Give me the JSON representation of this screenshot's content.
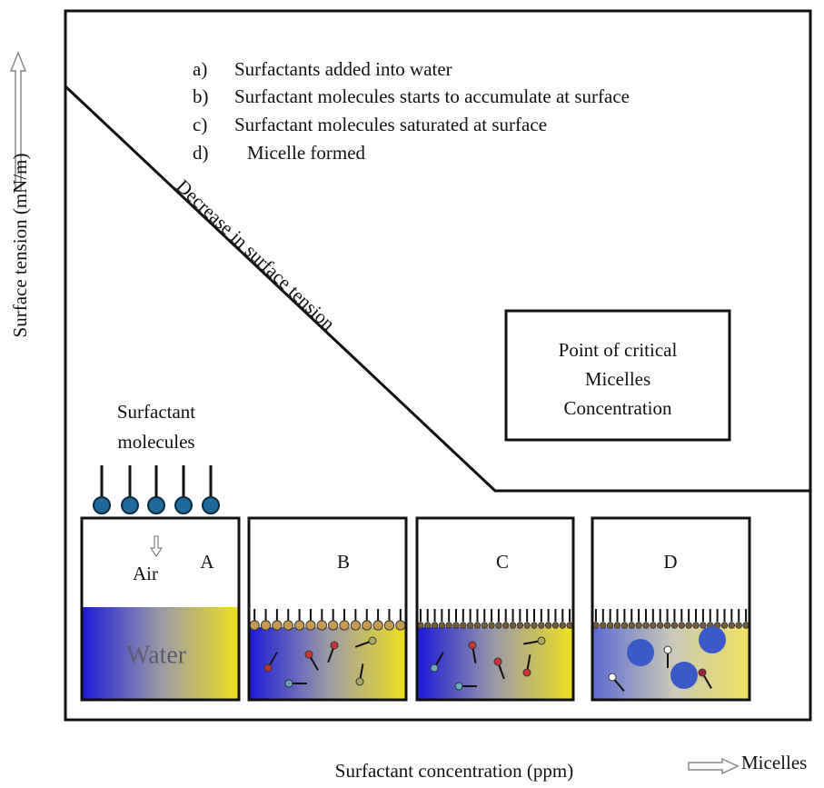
{
  "y_axis_label": "Surface tension (mN/m)",
  "x_axis_label": "Surfactant concentration (ppm)",
  "arrow_label": "Micelles",
  "legend": [
    {
      "marker": "a)",
      "text": "Surfactants added into water"
    },
    {
      "marker": "b)",
      "text": "Surfactant molecules starts to accumulate at surface"
    },
    {
      "marker": "c)",
      "text": "Surfactant molecules saturated at surface"
    },
    {
      "marker": "d)",
      "text": "Micelle formed"
    }
  ],
  "curve_label": "Decrease in surface tension",
  "cmc_box": [
    "Point of critical",
    "Micelles",
    "Concentration"
  ],
  "surfactant_label": [
    "Surfactant",
    "molecules"
  ],
  "panels": [
    "A",
    "B",
    "C",
    "D"
  ],
  "panel_a": {
    "air": "Air",
    "water": "Water"
  }
}
